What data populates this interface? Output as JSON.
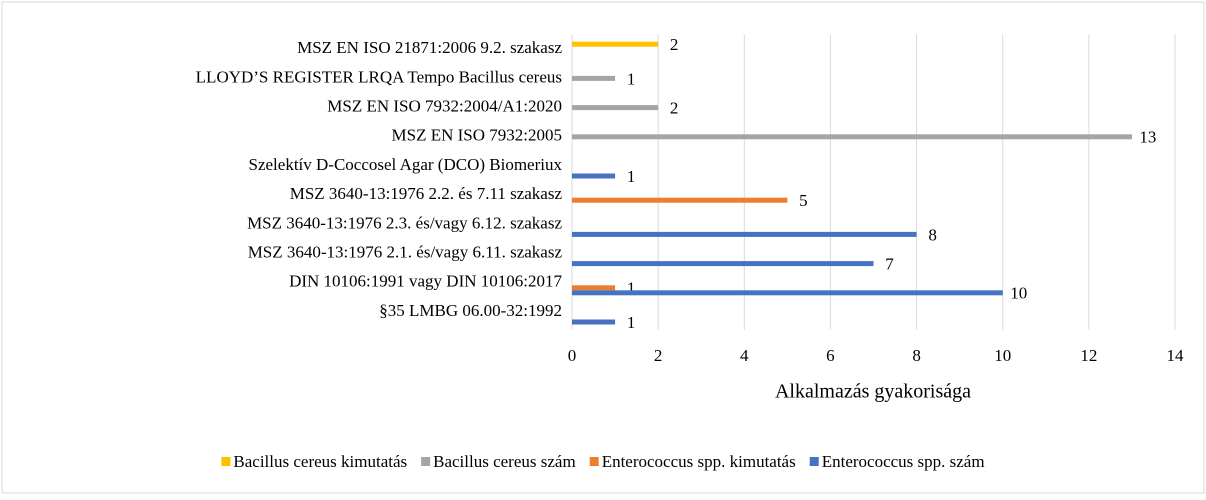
{
  "chart_data": {
    "type": "bar",
    "orientation": "horizontal",
    "categories": [
      "§35 LMBG 06.00-32:1992",
      "DIN 10106:1991 vagy DIN 10106:2017",
      "MSZ 3640-13:1976 2.1. és/vagy 6.11. szakasz",
      "MSZ 3640-13:1976 2.3. és/vagy 6.12. szakasz",
      "MSZ 3640-13:1976 2.2. és 7.11 szakasz",
      "Szelektív D-Coccosel Agar (DCO) Biomeriux",
      "MSZ EN ISO 7932:2005",
      "MSZ EN ISO 7932:2004/A1:2020",
      "LLOYD’S REGISTER LRQA Tempo Bacillus cereus",
      "MSZ EN ISO 21871:2006 9.2. szakasz"
    ],
    "series": [
      {
        "name": "Bacillus cereus kimutatás",
        "color": "#ffc000",
        "values": [
          null,
          null,
          null,
          null,
          null,
          null,
          null,
          null,
          null,
          2
        ]
      },
      {
        "name": "Bacillus cereus szám",
        "color": "#a5a5a5",
        "values": [
          null,
          null,
          null,
          null,
          null,
          null,
          13,
          2,
          1,
          null
        ]
      },
      {
        "name": "Enterococcus spp. kimutatás",
        "color": "#ed7d31",
        "values": [
          null,
          1,
          null,
          null,
          5,
          null,
          null,
          null,
          null,
          null
        ]
      },
      {
        "name": "Enterococcus spp. szám",
        "color": "#4472c4",
        "values": [
          1,
          10,
          7,
          8,
          null,
          1,
          null,
          null,
          null,
          null
        ]
      }
    ],
    "x_axis_label": "Alkalmazás gyakorisága",
    "xlim": [
      0,
      14
    ],
    "xticks": [
      0,
      2,
      4,
      6,
      8,
      10,
      12,
      14
    ],
    "grid": true,
    "legend": "bottom"
  }
}
